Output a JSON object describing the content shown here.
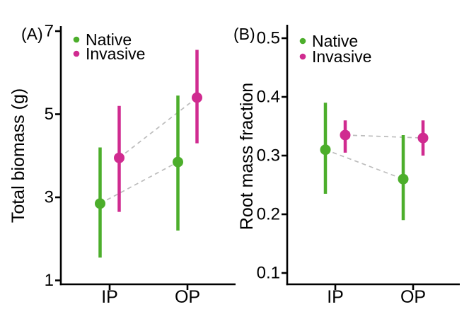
{
  "styles": {
    "background": "#ffffff",
    "axis_color": "#000000",
    "text_color": "#000000",
    "connector_color": "#bcbcbc",
    "native_color": "#4cae2b",
    "invasive_color": "#d02b90"
  },
  "legend_items": [
    {
      "label": "Native",
      "color": "#4cae2b"
    },
    {
      "label": "Invasive",
      "color": "#d02b90"
    }
  ],
  "chart_data": [
    {
      "type": "scatter",
      "panel_label": "(A)",
      "title": "",
      "ylabel": "Total biomass (g)",
      "xlabel": "",
      "categories": [
        "IP",
        "OP"
      ],
      "yticks": [
        {
          "value": 1,
          "label": "1"
        },
        {
          "value": 3,
          "label": "3"
        },
        {
          "value": 5,
          "label": "5"
        },
        {
          "value": 7,
          "label": "7"
        }
      ],
      "ylim": [
        0.9,
        7.1
      ],
      "grid": false,
      "legend_position": "top-left-inside",
      "connector_style": "dashed",
      "series": [
        {
          "name": "Native",
          "color": "#4cae2b",
          "points": [
            {
              "category": "IP",
              "mean": 2.85,
              "ci_low": 1.55,
              "ci_high": 4.2
            },
            {
              "category": "OP",
              "mean": 3.85,
              "ci_low": 2.2,
              "ci_high": 5.45
            }
          ]
        },
        {
          "name": "Invasive",
          "color": "#d02b90",
          "points": [
            {
              "category": "IP",
              "mean": 3.95,
              "ci_low": 2.65,
              "ci_high": 5.2
            },
            {
              "category": "OP",
              "mean": 5.4,
              "ci_low": 4.3,
              "ci_high": 6.55
            }
          ]
        }
      ]
    },
    {
      "type": "scatter",
      "panel_label": "(B)",
      "title": "",
      "ylabel": "Root mass fraction",
      "xlabel": "",
      "categories": [
        "IP",
        "OP"
      ],
      "yticks": [
        {
          "value": 0.1,
          "label": "0.1"
        },
        {
          "value": 0.2,
          "label": "0.2"
        },
        {
          "value": 0.3,
          "label": "0.3"
        },
        {
          "value": 0.4,
          "label": "0.4"
        },
        {
          "value": 0.5,
          "label": "0.5"
        }
      ],
      "ylim": [
        0.08,
        0.52
      ],
      "grid": false,
      "legend_position": "top-left-inside",
      "connector_style": "dashed",
      "series": [
        {
          "name": "Native",
          "color": "#4cae2b",
          "points": [
            {
              "category": "IP",
              "mean": 0.31,
              "ci_low": 0.235,
              "ci_high": 0.39
            },
            {
              "category": "OP",
              "mean": 0.26,
              "ci_low": 0.19,
              "ci_high": 0.335
            }
          ]
        },
        {
          "name": "Invasive",
          "color": "#d02b90",
          "points": [
            {
              "category": "IP",
              "mean": 0.335,
              "ci_low": 0.305,
              "ci_high": 0.36
            },
            {
              "category": "OP",
              "mean": 0.33,
              "ci_low": 0.3,
              "ci_high": 0.36
            }
          ]
        }
      ]
    }
  ]
}
